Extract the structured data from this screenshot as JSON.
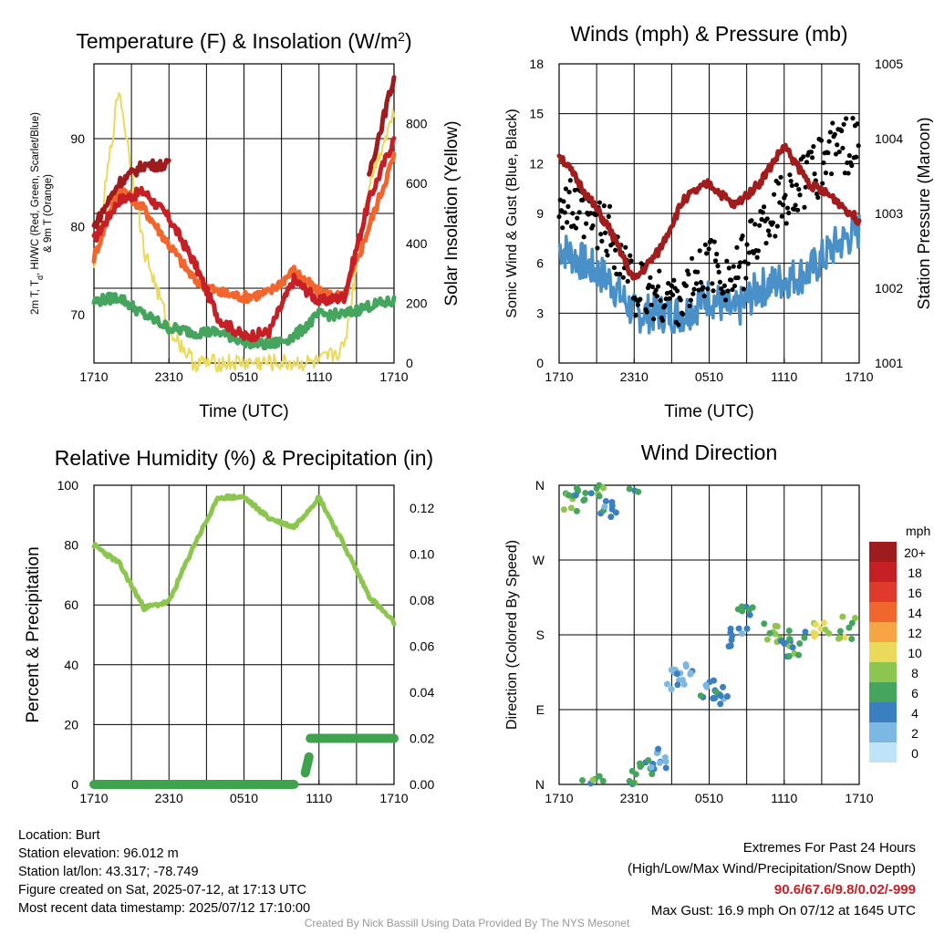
{
  "panels": {
    "temp": {
      "title": "Temperature (F) & Insolation (W/m",
      "title_sup": "2",
      "title_end": ")",
      "ylabel_line1": "2m T, T",
      "ylabel_sub": "d",
      "ylabel_line1_end": ", HI/WC (Red, Green, Scarlet/Blue)",
      "ylabel_line2": "& 9m T (Orange)",
      "y2label": "Solar Insolation (Yellow)",
      "xlabel": "Time (UTC)"
    },
    "wind": {
      "title": "Winds (mph) & Pressure (mb)",
      "ylabel": "Sonic Wind & Gust (Blue, Black)",
      "y2label": "Station Pressure (Maroon)",
      "xlabel": "Time (UTC)"
    },
    "rh": {
      "title": "Relative Humidity (%) & Precipitation (in)",
      "ylabel": "Percent & Precipitation"
    },
    "dir": {
      "title": "Wind Direction",
      "ylabel": "Direction (Colored By Speed)",
      "legend_title": "mph"
    }
  },
  "x_ticks": [
    "1710",
    "2310",
    "0510",
    "1110",
    "1710"
  ],
  "temp_yticks": [
    "70",
    "80",
    "90"
  ],
  "temp_y2ticks": [
    "0",
    "200",
    "400",
    "600",
    "800"
  ],
  "wind_yticks": [
    "0",
    "3",
    "6",
    "9",
    "12",
    "15",
    "18"
  ],
  "wind_y2ticks": [
    "1001",
    "1002",
    "1003",
    "1004",
    "1005"
  ],
  "rh_yticks": [
    "0",
    "20",
    "40",
    "60",
    "80",
    "100"
  ],
  "rh_y2ticks": [
    "0.00",
    "0.02",
    "0.04",
    "0.06",
    "0.08",
    "0.10",
    "0.12"
  ],
  "dir_yticks": [
    "N",
    "E",
    "S",
    "W",
    "N"
  ],
  "legend": {
    "labels": [
      "20+",
      "18",
      "16",
      "14",
      "12",
      "10",
      "8",
      "6",
      "4",
      "2",
      "0"
    ],
    "colors": [
      "#9e1b1e",
      "#c62026",
      "#e03a2c",
      "#f0662d",
      "#f7a544",
      "#ead95a",
      "#8cc64f",
      "#45a55e",
      "#3a7fc0",
      "#7db8e3",
      "#bfe3f7"
    ]
  },
  "station": {
    "location": "Location: Burt",
    "elevation": "Station elevation: 96.012 m",
    "latlon": "Station lat/lon: 43.317; -78.749",
    "created": "Figure created on Sat, 2025-07-12, at 17:13 UTC",
    "recent": "Most recent data timestamp: 2025/07/12 17:10:00"
  },
  "extremes": {
    "title": "Extremes For Past 24 Hours",
    "subtitle": "(High/Low/Max Wind/Precipitation/Snow Depth)",
    "values": "90.6/67.6/9.8/0.02/-999",
    "gust": "Max Gust: 16.9 mph On 07/12 at 1645 UTC",
    "value_color": "#c62026"
  },
  "credit": "Created By Nick Bassill Using Data Provided By The NYS Mesonet",
  "chart_data": [
    {
      "type": "line",
      "title": "Temperature (F) & Insolation (W/m2)",
      "xlabel": "Time (UTC)",
      "x": [
        0,
        2,
        4,
        6,
        8,
        10,
        12,
        14,
        16,
        18,
        20,
        22,
        24
      ],
      "ylim": [
        64.5,
        98.5
      ],
      "y2lim": [
        0,
        1000
      ],
      "series": [
        {
          "name": "2m T",
          "color": "#c62026",
          "values": [
            78.5,
            83,
            84,
            81,
            76,
            69.5,
            67.5,
            68,
            74,
            71.5,
            72,
            83,
            90
          ]
        },
        {
          "name": "9m T",
          "color": "#f0662d",
          "values": [
            76.5,
            84.5,
            82,
            78,
            74,
            72.5,
            72,
            72.5,
            75,
            72.5,
            72,
            80,
            88
          ]
        },
        {
          "name": "Td",
          "color": "#45a55e",
          "values": [
            71.5,
            72,
            70,
            68.5,
            68,
            68,
            67,
            66.5,
            67.5,
            70,
            70,
            71,
            71.5
          ]
        },
        {
          "name": "HI/WC",
          "color": "#9e1b1e",
          "values": [
            80,
            85,
            87,
            87,
            null,
            null,
            null,
            null,
            null,
            null,
            null,
            86,
            97
          ]
        },
        {
          "name": "Solar Insolation",
          "axis": "y2",
          "color": "#ead95a",
          "values": [
            300,
            920,
            380,
            120,
            0,
            0,
            0,
            0,
            0,
            0,
            50,
            600,
            840
          ]
        }
      ]
    },
    {
      "type": "scatter",
      "title": "Winds (mph) & Pressure (mb)",
      "xlabel": "Time (UTC)",
      "x": [
        0,
        2,
        4,
        6,
        8,
        10,
        12,
        14,
        16,
        18,
        20,
        22,
        24
      ],
      "ylim": [
        0,
        18
      ],
      "y2lim": [
        1001,
        1005
      ],
      "series": [
        {
          "name": "Sonic Wind",
          "color": "#4a90c8",
          "values": [
            7,
            6,
            5,
            3,
            3,
            3,
            4,
            3,
            4.5,
            5,
            5.5,
            7,
            8
          ]
        },
        {
          "name": "Gust",
          "color": "#000000",
          "values": [
            10,
            8.5,
            8,
            4.5,
            4,
            4,
            6,
            5,
            8,
            10,
            11,
            13,
            13
          ]
        },
        {
          "name": "Station Pressure",
          "axis": "y2",
          "color": "#a11c1c",
          "values": [
            1003.8,
            1003.3,
            1002.8,
            1002.1,
            1002.5,
            1003.2,
            1003.4,
            1003.1,
            1003.4,
            1003.9,
            1003.4,
            1003.2,
            1002.9
          ]
        }
      ]
    },
    {
      "type": "line",
      "title": "Relative Humidity (%) & Precipitation (in)",
      "x": [
        0,
        2,
        4,
        6,
        8,
        10,
        12,
        14,
        16,
        18,
        20,
        22,
        24
      ],
      "ylim": [
        0,
        100
      ],
      "y2lim": [
        0,
        0.13
      ],
      "series": [
        {
          "name": "Relative Humidity",
          "color": "#8cc64f",
          "values": [
            80,
            74,
            59,
            61,
            80,
            96,
            96,
            89,
            86,
            96,
            80,
            63,
            54
          ]
        },
        {
          "name": "Precipitation",
          "axis": "y2",
          "color": "#3fa34d",
          "values": [
            0,
            0,
            0,
            0,
            0,
            0,
            0,
            0,
            0,
            0.02,
            0.02,
            0.02,
            0.02
          ]
        }
      ]
    },
    {
      "type": "scatter",
      "title": "Wind Direction",
      "ylabel": "Direction (Colored By Speed)",
      "yticks": [
        "N",
        "E",
        "S",
        "W",
        "N"
      ],
      "x": [
        1,
        2,
        3,
        4,
        6,
        7,
        8,
        9,
        10,
        12,
        13,
        14,
        15,
        17,
        18,
        19,
        21,
        23
      ],
      "direction_deg": [
        340,
        350,
        355,
        330,
        5,
        20,
        30,
        125,
        130,
        115,
        110,
        175,
        200,
        180,
        165,
        170,
        180,
        190
      ],
      "speed_mph": [
        7,
        6,
        7,
        4,
        6,
        5,
        3,
        2,
        3,
        4,
        4,
        3,
        5,
        7,
        4,
        6,
        9,
        8
      ]
    }
  ]
}
